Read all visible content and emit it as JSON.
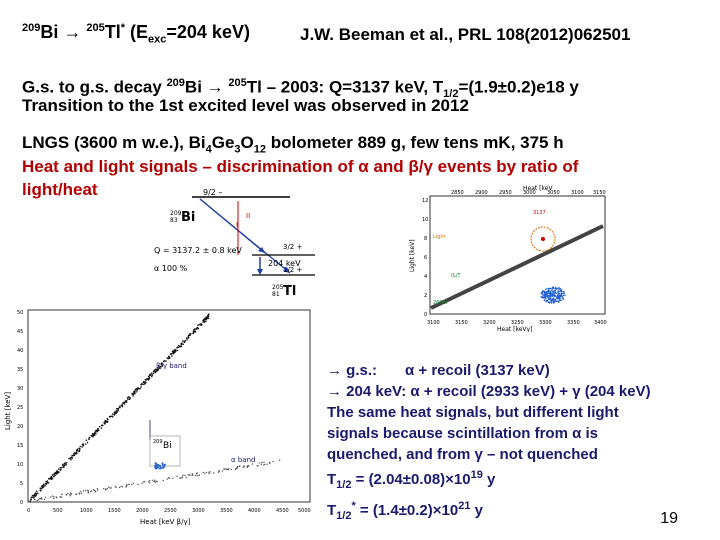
{
  "header": {
    "title_parts": [
      "209",
      "Bi  → ",
      "205",
      "Tl",
      "*",
      " (E",
      "exc",
      "=204 keV)"
    ],
    "reference": "J.W. Beeman et al., PRL 108(2012)062501"
  },
  "intro": {
    "line1_a": "G.s. to g.s. decay ",
    "line1_sup1": "209",
    "line1_b": "Bi → ",
    "line1_sup2": "205",
    "line1_c": "Tl – 2003: Q=3137 keV, T",
    "line1_sub": "1/2",
    "line1_d": "=(1.9±0.2)e18 y",
    "line2": "Transition to the 1st excited level was observed in 2012"
  },
  "experiment": {
    "line1_a": "LNGS (3600 m w.e.), Bi",
    "line1_sub1": "4",
    "line1_b": "Ge",
    "line1_sub2": "3",
    "line1_c": "O",
    "line1_sub3": "12",
    "line1_d": " bolometer 889 g, few tens mK, 375 h",
    "line2": "Heat and light signals – discrimination of α and β/γ events by ratio of",
    "line3": "light/heat"
  },
  "decay_scheme": {
    "parent_spin": "9/2 –",
    "parent_mass": "209",
    "parent_z": "83",
    "parent_symbol": "Bi",
    "q_value": "Q = 3137.2 ",
    "q_unc": "0.8 keV",
    "alpha_branch": "α 100 %",
    "level1_spin": "3/2 +",
    "level1_energy": "204 keV",
    "gs_spin": "1/2 +",
    "daughter_mass": "205",
    "daughter_z": "81",
    "daughter_symbol": "Tl",
    "transitions": [
      "I",
      "II"
    ]
  },
  "small_plot": {
    "x_title": "Heat [keV",
    "x_title_sub": "γ",
    "x_title_end": "]",
    "y_title": "Light [keV]",
    "x_ticks": [
      "3100",
      "3150",
      "3200",
      "3250",
      "3300",
      "3350",
      "3400"
    ],
    "x_ticks_top": [
      "2850",
      "2900",
      "2950",
      "3000",
      "3050",
      "3100",
      "3150"
    ],
    "y_ticks": [
      "12",
      "10",
      "8",
      "6",
      "4",
      "2",
      "0"
    ],
    "annotation_peak": "3137",
    "label_light": "Light",
    "label_ratio": "(L/T",
    "label_sample": "209Bi"
  },
  "large_plot": {
    "x_title": "Heat [keV β/γ]",
    "y_title": "Light [keV]",
    "y_ticks": [
      "50",
      "45",
      "40",
      "35",
      "30",
      "25",
      "20",
      "15",
      "10",
      "5",
      "0"
    ],
    "x_ticks": [
      "0",
      "500",
      "1000",
      "1500",
      "2000",
      "2500",
      "3000",
      "3500",
      "4000",
      "4500",
      "5000"
    ],
    "label_beta": "β/γ  band",
    "label_alpha": "α  band",
    "label_bi_mass": "209",
    "label_bi": "Bi"
  },
  "results": {
    "line1_a": "→ g.s.:",
    "line1_b": "α + recoil (3137 keV)",
    "line2": "→ 204 keV: α + recoil (2933 keV) + γ (204 keV)",
    "line3": "The same heat signals, but different light",
    "line4": "signals because scintillation from α is",
    "line5": "quenched, and from γ – not quenched",
    "t1": "T",
    "t1_sub": "1/2",
    "t1_val": " = (2.04±0.08)×10",
    "t1_exp": "19",
    "t1_unit": " y",
    "t2": "T",
    "t2_sub": "1/2",
    "t2_star": "*",
    "t2_val": " = (1.4±0.2)×10",
    "t2_exp": "21",
    "t2_unit": " y"
  },
  "page_number": "19",
  "colors": {
    "text": "#000000",
    "red": "#b30000",
    "navy": "#1a1a6e",
    "alpha_points": "#1f5fd6",
    "band": "#111111"
  }
}
